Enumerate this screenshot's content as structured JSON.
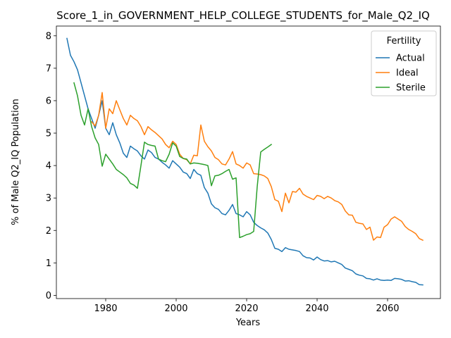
{
  "chart_data": {
    "type": "line",
    "title": "Score_1_in_GOVERNMENT_HELP_COLLEGE_STUDENTS_for_Male_Q2_IQ",
    "xlabel": "Years",
    "ylabel": "% of Male Q2_IQ Population",
    "xlim": [
      1966,
      2075
    ],
    "ylim": [
      -0.1,
      8.3
    ],
    "x_ticks": [
      1980,
      2000,
      2020,
      2040,
      2060
    ],
    "y_ticks": [
      0,
      1,
      2,
      3,
      4,
      5,
      6,
      7,
      8
    ],
    "grid": false,
    "legend": {
      "title": "Fertility",
      "placement": "top-right"
    },
    "colors": {
      "Actual": "#1f77b4",
      "Ideal": "#ff7f0e",
      "Sterile": "#2ca02c"
    },
    "series": [
      {
        "name": "Actual",
        "x": [
          1969,
          1970,
          1971,
          1972,
          1973,
          1974,
          1975,
          1976,
          1977,
          1978,
          1979,
          1980,
          1981,
          1982,
          1983,
          1984,
          1985,
          1986,
          1987,
          1988,
          1989,
          1990,
          1991,
          1992,
          1993,
          1994,
          1995,
          1996,
          1997,
          1998,
          1999,
          2000,
          2001,
          2002,
          2003,
          2004,
          2005,
          2006,
          2007,
          2008,
          2009,
          2010,
          2011,
          2012,
          2013,
          2014,
          2015,
          2016,
          2017,
          2018,
          2019,
          2020,
          2021,
          2022,
          2023,
          2024,
          2025,
          2026,
          2027,
          2028,
          2029,
          2030,
          2031,
          2032,
          2033,
          2034,
          2035,
          2036,
          2037,
          2038,
          2039,
          2040,
          2041,
          2042,
          2043,
          2044,
          2045,
          2046,
          2047,
          2048,
          2049,
          2050,
          2051,
          2052,
          2053,
          2054,
          2055,
          2056,
          2057,
          2058,
          2059,
          2060,
          2061,
          2062,
          2063,
          2064,
          2065,
          2066,
          2067,
          2068,
          2069,
          2070
        ],
        "values": [
          7.92,
          7.4,
          7.2,
          6.95,
          6.55,
          6.15,
          5.75,
          5.45,
          5.15,
          5.55,
          6.0,
          5.15,
          4.95,
          5.32,
          4.95,
          4.7,
          4.38,
          4.25,
          4.6,
          4.52,
          4.45,
          4.3,
          4.2,
          4.48,
          4.4,
          4.25,
          4.2,
          4.1,
          4.02,
          3.92,
          4.15,
          4.05,
          3.95,
          3.8,
          3.75,
          3.6,
          3.88,
          3.75,
          3.7,
          3.32,
          3.15,
          2.82,
          2.7,
          2.65,
          2.52,
          2.48,
          2.62,
          2.8,
          2.52,
          2.48,
          2.42,
          2.58,
          2.48,
          2.25,
          2.15,
          2.08,
          2.02,
          1.92,
          1.72,
          1.45,
          1.42,
          1.35,
          1.47,
          1.42,
          1.4,
          1.38,
          1.35,
          1.22,
          1.16,
          1.15,
          1.09,
          1.18,
          1.1,
          1.06,
          1.07,
          1.03,
          1.05,
          1.0,
          0.95,
          0.84,
          0.8,
          0.76,
          0.66,
          0.62,
          0.6,
          0.52,
          0.51,
          0.47,
          0.51,
          0.47,
          0.46,
          0.47,
          0.46,
          0.52,
          0.51,
          0.49,
          0.44,
          0.45,
          0.42,
          0.4,
          0.33,
          0.32
        ]
      },
      {
        "name": "Ideal",
        "x": [
          1976,
          1977,
          1978,
          1979,
          1980,
          1981,
          1982,
          1983,
          1984,
          1985,
          1986,
          1987,
          1988,
          1989,
          1990,
          1991,
          1992,
          1993,
          1994,
          1995,
          1996,
          1997,
          1998,
          1999,
          2000,
          2001,
          2002,
          2003,
          2004,
          2005,
          2006,
          2007,
          2008,
          2009,
          2010,
          2011,
          2012,
          2013,
          2014,
          2015,
          2016,
          2017,
          2018,
          2019,
          2020,
          2021,
          2022,
          2023,
          2024,
          2025,
          2026,
          2027,
          2028,
          2029,
          2030,
          2031,
          2032,
          2033,
          2034,
          2035,
          2036,
          2037,
          2038,
          2039,
          2040,
          2041,
          2042,
          2043,
          2044,
          2045,
          2046,
          2047,
          2048,
          2049,
          2050,
          2051,
          2052,
          2053,
          2054,
          2055,
          2056,
          2057,
          2058,
          2059,
          2060,
          2061,
          2062,
          2063,
          2064,
          2065,
          2066,
          2067,
          2068,
          2069,
          2070
        ],
        "values": [
          5.35,
          5.22,
          5.55,
          6.25,
          5.15,
          5.75,
          5.6,
          6.0,
          5.72,
          5.45,
          5.25,
          5.55,
          5.45,
          5.38,
          5.2,
          4.95,
          5.2,
          5.1,
          5.02,
          4.92,
          4.82,
          4.65,
          4.55,
          4.75,
          4.65,
          4.35,
          4.22,
          4.18,
          4.05,
          4.32,
          4.3,
          5.25,
          4.75,
          4.58,
          4.45,
          4.25,
          4.18,
          4.05,
          4.02,
          4.2,
          4.43,
          4.05,
          4.0,
          3.92,
          4.08,
          4.02,
          3.75,
          3.74,
          3.72,
          3.68,
          3.6,
          3.35,
          2.95,
          2.9,
          2.58,
          3.15,
          2.85,
          3.2,
          3.18,
          3.3,
          3.12,
          3.05,
          3.0,
          2.95,
          3.08,
          3.05,
          2.98,
          3.05,
          3.0,
          2.92,
          2.88,
          2.8,
          2.6,
          2.48,
          2.47,
          2.25,
          2.22,
          2.2,
          2.03,
          2.1,
          1.7,
          1.8,
          1.78,
          2.1,
          2.18,
          2.35,
          2.42,
          2.35,
          2.28,
          2.12,
          2.03,
          1.97,
          1.9,
          1.75,
          1.7
        ]
      },
      {
        "name": "Sterile",
        "x": [
          1971,
          1972,
          1973,
          1974,
          1975,
          1976,
          1977,
          1978,
          1979,
          1980,
          1981,
          1982,
          1983,
          1984,
          1985,
          1986,
          1987,
          1988,
          1989,
          1990,
          1991,
          1992,
          1993,
          1994,
          1995,
          1996,
          1997,
          1998,
          1999,
          2000,
          2001,
          2002,
          2003,
          2004,
          2005,
          2006,
          2007,
          2008,
          2009,
          2010,
          2011,
          2012,
          2013,
          2014,
          2015,
          2016,
          2017,
          2018,
          2019,
          2020,
          2021,
          2022,
          2023,
          2024,
          2025,
          2026,
          2027
        ],
        "values": [
          6.55,
          6.15,
          5.55,
          5.25,
          5.75,
          5.2,
          4.85,
          4.65,
          3.98,
          4.35,
          4.2,
          4.05,
          3.88,
          3.8,
          3.72,
          3.62,
          3.45,
          3.4,
          3.3,
          4.0,
          4.72,
          4.65,
          4.62,
          4.6,
          4.2,
          4.15,
          4.12,
          4.35,
          4.7,
          4.6,
          4.28,
          4.22,
          4.2,
          4.05,
          4.08,
          4.07,
          4.05,
          4.03,
          4.0,
          3.38,
          3.68,
          3.7,
          3.75,
          3.82,
          3.88,
          3.58,
          3.62,
          1.78,
          1.82,
          1.87,
          1.9,
          1.97,
          3.35,
          4.42,
          4.5,
          4.57,
          4.65
        ]
      }
    ]
  }
}
